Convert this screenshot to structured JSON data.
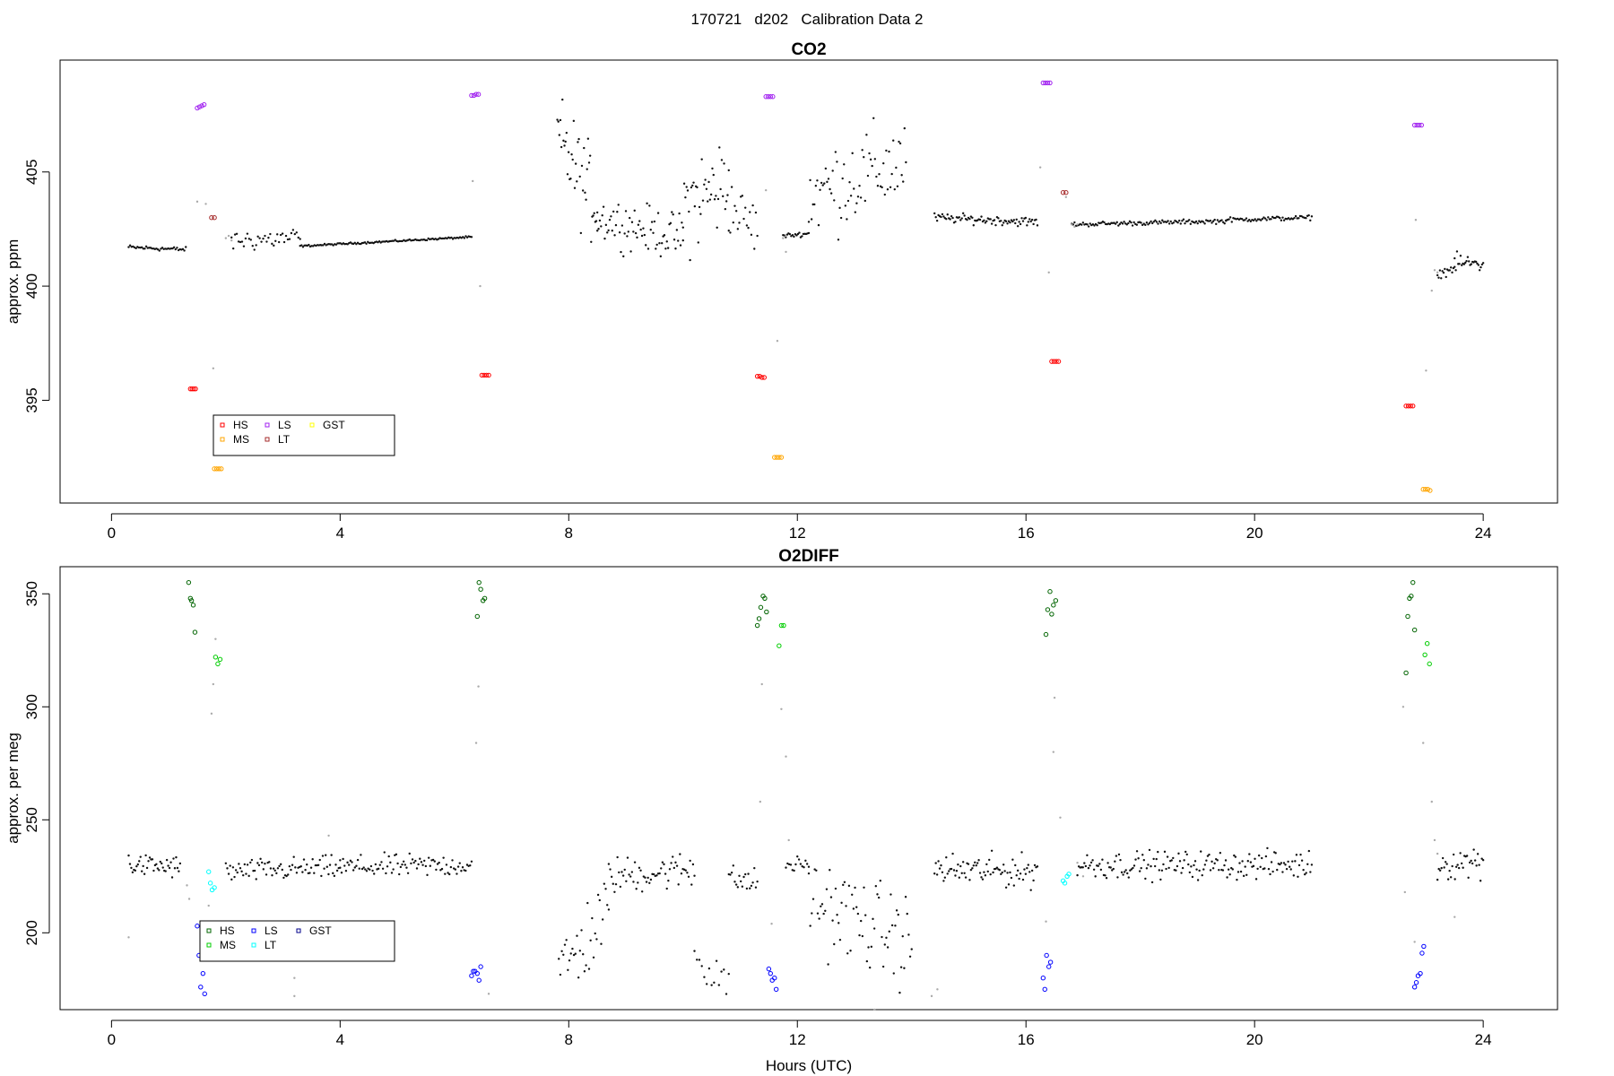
{
  "page": {
    "supertitle": "170721   d202   Calibration Data 2"
  },
  "chart_data": [
    {
      "type": "scatter",
      "title": "CO2",
      "xlabel": "",
      "ylabel": "approx. ppm",
      "xlim": [
        -0.9,
        25.3
      ],
      "ylim": [
        390.5,
        409.9
      ],
      "xticks": [
        0,
        4,
        8,
        12,
        16,
        20,
        24
      ],
      "yticks": [
        395,
        400,
        405
      ],
      "grid": false,
      "legend": {
        "placement": "bottom-left",
        "entries": [
          {
            "label": "HS",
            "color": "#ff0000"
          },
          {
            "label": "MS",
            "color": "#ffa500"
          },
          {
            "label": "LS",
            "color": "#a020f0"
          },
          {
            "label": "LT",
            "color": "#a52a2a"
          },
          {
            "label": "GST",
            "color": "#ffff00"
          }
        ]
      },
      "series": [
        {
          "name": "HS",
          "color": "#ff0000",
          "points": [
            [
              1.38,
              395.5
            ],
            [
              1.41,
              395.5
            ],
            [
              1.44,
              395.5
            ],
            [
              1.47,
              395.5
            ],
            [
              6.48,
              396.1
            ],
            [
              6.52,
              396.1
            ],
            [
              6.56,
              396.1
            ],
            [
              6.6,
              396.1
            ],
            [
              11.3,
              396.05
            ],
            [
              11.34,
              396.05
            ],
            [
              11.38,
              396.0
            ],
            [
              11.42,
              396.0
            ],
            [
              16.45,
              396.7
            ],
            [
              16.49,
              396.7
            ],
            [
              16.53,
              396.7
            ],
            [
              16.57,
              396.7
            ],
            [
              22.65,
              394.75
            ],
            [
              22.69,
              394.75
            ],
            [
              22.73,
              394.75
            ],
            [
              22.77,
              394.75
            ]
          ]
        },
        {
          "name": "MS",
          "color": "#ffa500",
          "points": [
            [
              1.8,
              392.0
            ],
            [
              1.84,
              392.0
            ],
            [
              1.88,
              392.0
            ],
            [
              1.92,
              392.0
            ],
            [
              11.6,
              392.5
            ],
            [
              11.64,
              392.5
            ],
            [
              11.68,
              392.5
            ],
            [
              11.72,
              392.5
            ],
            [
              22.95,
              391.1
            ],
            [
              22.99,
              391.1
            ],
            [
              23.03,
              391.1
            ],
            [
              23.07,
              391.05
            ]
          ]
        },
        {
          "name": "LS",
          "color": "#a020f0",
          "points": [
            [
              1.5,
              407.8
            ],
            [
              1.54,
              407.85
            ],
            [
              1.58,
              407.9
            ],
            [
              1.62,
              407.95
            ],
            [
              6.3,
              408.35
            ],
            [
              6.34,
              408.35
            ],
            [
              6.38,
              408.4
            ],
            [
              6.42,
              408.4
            ],
            [
              11.45,
              408.3
            ],
            [
              11.49,
              408.3
            ],
            [
              11.53,
              408.3
            ],
            [
              11.57,
              408.3
            ],
            [
              16.3,
              408.9
            ],
            [
              16.34,
              408.9
            ],
            [
              16.38,
              408.9
            ],
            [
              16.42,
              408.9
            ],
            [
              22.8,
              407.05
            ],
            [
              22.84,
              407.05
            ],
            [
              22.88,
              407.05
            ],
            [
              22.92,
              407.05
            ]
          ]
        },
        {
          "name": "LT",
          "color": "#a52a2a",
          "points": [
            [
              1.75,
              403.0
            ],
            [
              1.8,
              403.0
            ],
            [
              16.65,
              404.1
            ],
            [
              16.7,
              404.1
            ]
          ]
        },
        {
          "name": "GST",
          "color": "#ffff00",
          "points": []
        }
      ],
      "ambient_segments": [
        {
          "x0": 0.3,
          "x1": 1.3,
          "y0": 401.7,
          "y1": 401.6,
          "noise": 0.1,
          "n": 40
        },
        {
          "x0": 2.1,
          "x1": 3.3,
          "y0": 402.0,
          "y1": 402.1,
          "noise": 0.5,
          "n": 40
        },
        {
          "x0": 3.3,
          "x1": 6.3,
          "y0": 401.75,
          "y1": 402.15,
          "noise": 0.04,
          "n": 120
        },
        {
          "x0": 7.8,
          "x1": 8.5,
          "y0": 406.5,
          "y1": 403.5,
          "noise": 2.0,
          "n": 40
        },
        {
          "x0": 8.5,
          "x1": 10.0,
          "y0": 403.0,
          "y1": 402.1,
          "noise": 1.0,
          "n": 70
        },
        {
          "x0": 10.0,
          "x1": 10.8,
          "y0": 403.5,
          "y1": 404.5,
          "noise": 2.2,
          "n": 40
        },
        {
          "x0": 10.8,
          "x1": 11.3,
          "y0": 403.5,
          "y1": 402.5,
          "noise": 1.2,
          "n": 20
        },
        {
          "x0": 11.75,
          "x1": 12.2,
          "y0": 402.2,
          "y1": 402.3,
          "noise": 0.1,
          "n": 20
        },
        {
          "x0": 12.2,
          "x1": 13.9,
          "y0": 404.0,
          "y1": 405.5,
          "noise": 2.0,
          "n": 70
        },
        {
          "x0": 14.4,
          "x1": 16.2,
          "y0": 403.0,
          "y1": 402.8,
          "noise": 0.2,
          "n": 80
        },
        {
          "x0": 16.8,
          "x1": 19.5,
          "y0": 402.7,
          "y1": 402.85,
          "noise": 0.1,
          "n": 110
        },
        {
          "x0": 19.5,
          "x1": 21.0,
          "y0": 402.9,
          "y1": 403.0,
          "noise": 0.1,
          "n": 60
        },
        {
          "x0": 23.2,
          "x1": 23.5,
          "y0": 400.5,
          "y1": 400.8,
          "noise": 0.2,
          "n": 15
        },
        {
          "x0": 23.5,
          "x1": 24.0,
          "y0": 401.0,
          "y1": 401.0,
          "noise": 0.4,
          "n": 25
        }
      ],
      "transition_points": [
        [
          2.0,
          402.1
        ],
        [
          2.05,
          402.2
        ],
        [
          2.1,
          402.0
        ],
        [
          11.75,
          402.1
        ],
        [
          11.8,
          402.2
        ],
        [
          16.8,
          402.7
        ],
        [
          16.85,
          402.6
        ],
        [
          16.9,
          402.7
        ],
        [
          23.15,
          400.7
        ],
        [
          23.2,
          400.6
        ],
        [
          1.5,
          403.7
        ],
        [
          1.65,
          403.6
        ],
        [
          1.78,
          396.4
        ],
        [
          6.32,
          404.6
        ],
        [
          6.45,
          400.0
        ],
        [
          11.45,
          404.2
        ],
        [
          11.65,
          397.6
        ],
        [
          11.8,
          401.5
        ],
        [
          16.25,
          405.2
        ],
        [
          16.4,
          400.6
        ],
        [
          16.7,
          403.9
        ],
        [
          22.82,
          402.9
        ],
        [
          23.0,
          396.3
        ],
        [
          23.1,
          399.8
        ]
      ]
    },
    {
      "type": "scatter",
      "title": "O2DIFF",
      "xlabel": "Hours (UTC)",
      "ylabel": "approx. per meg",
      "xlim": [
        -0.9,
        25.3
      ],
      "ylim": [
        166,
        362
      ],
      "xticks": [
        0,
        4,
        8,
        12,
        16,
        20,
        24
      ],
      "yticks": [
        200,
        250,
        300,
        350
      ],
      "grid": false,
      "legend": {
        "placement": "bottom-left",
        "entries": [
          {
            "label": "HS",
            "color": "#006400"
          },
          {
            "label": "MS",
            "color": "#00cd00"
          },
          {
            "label": "LS",
            "color": "#0000ff"
          },
          {
            "label": "LT",
            "color": "#00ffff"
          },
          {
            "label": "GST",
            "color": "#00008b"
          }
        ]
      },
      "series": [
        {
          "name": "HS",
          "color": "#006400",
          "points": [
            [
              1.35,
              355
            ],
            [
              1.38,
              348
            ],
            [
              1.4,
              347
            ],
            [
              1.43,
              345
            ],
            [
              1.46,
              333
            ],
            [
              6.4,
              340
            ],
            [
              6.43,
              355
            ],
            [
              6.46,
              352
            ],
            [
              6.5,
              347
            ],
            [
              6.53,
              348
            ],
            [
              11.3,
              336
            ],
            [
              11.33,
              339
            ],
            [
              11.36,
              344
            ],
            [
              11.4,
              349
            ],
            [
              11.43,
              348
            ],
            [
              11.46,
              342
            ],
            [
              16.35,
              332
            ],
            [
              16.38,
              343
            ],
            [
              16.42,
              351
            ],
            [
              16.45,
              341
            ],
            [
              16.48,
              345
            ],
            [
              16.52,
              347
            ],
            [
              22.65,
              315
            ],
            [
              22.68,
              340
            ],
            [
              22.71,
              348
            ],
            [
              22.74,
              349
            ],
            [
              22.77,
              355
            ],
            [
              22.8,
              334
            ]
          ]
        },
        {
          "name": "MS",
          "color": "#00cd00",
          "points": [
            [
              1.82,
              322
            ],
            [
              1.86,
              319
            ],
            [
              1.9,
              321
            ],
            [
              11.68,
              327
            ],
            [
              11.72,
              336
            ],
            [
              11.76,
              336
            ],
            [
              22.98,
              323
            ],
            [
              23.02,
              328
            ],
            [
              23.06,
              319
            ]
          ]
        },
        {
          "name": "LS",
          "color": "#0000ff",
          "points": [
            [
              1.5,
              203
            ],
            [
              1.53,
              190
            ],
            [
              1.56,
              176
            ],
            [
              1.6,
              182
            ],
            [
              1.63,
              173
            ],
            [
              6.3,
              181
            ],
            [
              6.33,
              183
            ],
            [
              6.36,
              183
            ],
            [
              6.4,
              182
            ],
            [
              6.43,
              179
            ],
            [
              6.46,
              185
            ],
            [
              11.5,
              184
            ],
            [
              11.53,
              182
            ],
            [
              11.56,
              179
            ],
            [
              11.6,
              180
            ],
            [
              11.63,
              175
            ],
            [
              16.3,
              180
            ],
            [
              16.33,
              175
            ],
            [
              16.36,
              190
            ],
            [
              16.4,
              185
            ],
            [
              16.43,
              187
            ],
            [
              22.8,
              176
            ],
            [
              22.83,
              178
            ],
            [
              22.86,
              181
            ],
            [
              22.9,
              182
            ],
            [
              22.93,
              191
            ],
            [
              22.96,
              194
            ]
          ]
        },
        {
          "name": "LT",
          "color": "#00ffff",
          "points": [
            [
              1.7,
              227
            ],
            [
              1.73,
              222
            ],
            [
              1.76,
              219
            ],
            [
              1.8,
              220
            ],
            [
              16.65,
              223
            ],
            [
              16.68,
              222
            ],
            [
              16.72,
              225
            ],
            [
              16.75,
              226
            ]
          ]
        },
        {
          "name": "GST",
          "color": "#00008b",
          "points": []
        }
      ],
      "ambient_segments": [
        {
          "x0": 0.3,
          "x1": 1.2,
          "y0": 230,
          "y1": 229,
          "noise": 5,
          "n": 40
        },
        {
          "x0": 2.0,
          "x1": 4.0,
          "y0": 227,
          "y1": 229,
          "noise": 5,
          "n": 80
        },
        {
          "x0": 4.0,
          "x1": 6.3,
          "y0": 229,
          "y1": 230,
          "noise": 5,
          "n": 90
        },
        {
          "x0": 7.8,
          "x1": 8.7,
          "y0": 180,
          "y1": 210,
          "noise": 18,
          "n": 35
        },
        {
          "x0": 8.7,
          "x1": 10.2,
          "y0": 225,
          "y1": 228,
          "noise": 8,
          "n": 60
        },
        {
          "x0": 10.2,
          "x1": 10.8,
          "y0": 190,
          "y1": 180,
          "noise": 12,
          "n": 15
        },
        {
          "x0": 10.8,
          "x1": 11.3,
          "y0": 224,
          "y1": 222,
          "noise": 6,
          "n": 20
        },
        {
          "x0": 11.8,
          "x1": 12.2,
          "y0": 230,
          "y1": 230,
          "noise": 4,
          "n": 15
        },
        {
          "x0": 12.2,
          "x1": 14.0,
          "y0": 215,
          "y1": 195,
          "noise": 20,
          "n": 70
        },
        {
          "x0": 14.4,
          "x1": 16.2,
          "y0": 228,
          "y1": 227,
          "noise": 7,
          "n": 80
        },
        {
          "x0": 16.9,
          "x1": 21.0,
          "y0": 230,
          "y1": 230,
          "noise": 6,
          "n": 170
        },
        {
          "x0": 23.2,
          "x1": 24.0,
          "y0": 230,
          "y1": 232,
          "noise": 7,
          "n": 35
        }
      ],
      "transition_points": [
        [
          0.3,
          198
        ],
        [
          1.32,
          221
        ],
        [
          1.36,
          215
        ],
        [
          1.7,
          212
        ],
        [
          1.75,
          297
        ],
        [
          1.78,
          310
        ],
        [
          1.82,
          330
        ],
        [
          3.2,
          172
        ],
        [
          3.2,
          180
        ],
        [
          3.8,
          243
        ],
        [
          6.38,
          284
        ],
        [
          6.42,
          309
        ],
        [
          6.6,
          173
        ],
        [
          11.35,
          258
        ],
        [
          11.38,
          310
        ],
        [
          11.55,
          204
        ],
        [
          11.72,
          299
        ],
        [
          11.8,
          278
        ],
        [
          11.85,
          241
        ],
        [
          13.35,
          166
        ],
        [
          14.35,
          172
        ],
        [
          14.45,
          175
        ],
        [
          16.35,
          205
        ],
        [
          16.48,
          280
        ],
        [
          16.5,
          304
        ],
        [
          16.6,
          251
        ],
        [
          16.9,
          231
        ],
        [
          17.0,
          225
        ],
        [
          22.6,
          300
        ],
        [
          22.63,
          218
        ],
        [
          22.8,
          196
        ],
        [
          22.95,
          284
        ],
        [
          23.1,
          258
        ],
        [
          23.15,
          241
        ],
        [
          23.2,
          235
        ],
        [
          23.5,
          207
        ]
      ]
    }
  ]
}
